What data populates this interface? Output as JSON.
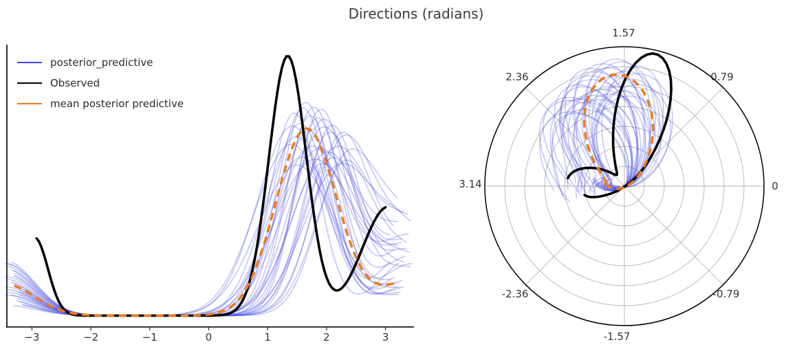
{
  "title": "Directions (radians)",
  "colors": {
    "posterior_predictive": "#3b43e0",
    "observed": "#000000",
    "mean_posterior_predictive": "#ee7b1d",
    "grid": "#9a9a9a",
    "spine": "#1a1a1a",
    "tick_text": "#333333",
    "title_text": "#3a3a3a"
  },
  "legend": {
    "items": [
      {
        "label": "posterior_predictive",
        "color_key": "posterior_predictive"
      },
      {
        "label": "Observed",
        "color_key": "observed"
      },
      {
        "label": "mean posterior predictive",
        "color_key": "mean_posterior_predictive"
      }
    ]
  },
  "chart_data": [
    {
      "type": "line",
      "subtitle": "kernel density estimates of directions (radians), linear axes",
      "xlabel": "",
      "ylabel": "",
      "x_ticks": [
        -3,
        -2,
        -1,
        0,
        1,
        2,
        3
      ],
      "xlim": [
        -3.45,
        3.49
      ],
      "grid": false,
      "legend_position": "upper left",
      "series": [
        {
          "name": "Observed",
          "style": "solid",
          "color_key": "observed",
          "x_range": [
            -2.92,
            3.0
          ],
          "base": 0.004,
          "components": [
            {
              "center": 1.34,
              "height": 1.0,
              "sigma": 0.32
            },
            {
              "center": 3.05,
              "height": 0.42,
              "sigma": 0.45
            },
            {
              "center": -2.95,
              "height": 0.3,
              "sigma": 0.22
            }
          ],
          "approx_points_x": [
            -2.92,
            -2.5,
            -2.0,
            -1.0,
            0.0,
            0.5,
            1.0,
            1.34,
            1.7,
            2.0,
            2.45,
            3.0
          ],
          "approx_points_density": [
            0.3,
            0.03,
            0.01,
            0.004,
            0.004,
            0.04,
            0.57,
            1.0,
            0.6,
            0.15,
            0.17,
            0.42
          ]
        },
        {
          "name": "mean posterior predictive",
          "style": "dashed",
          "color_key": "mean_posterior_predictive",
          "x_range": [
            -3.3,
            3.25
          ],
          "base": 0.004,
          "components": [
            {
              "center": 1.66,
              "height": 0.72,
              "sigma": 0.52
            },
            {
              "center": 3.45,
              "height": 0.13,
              "sigma": 0.55
            },
            {
              "center": -3.45,
              "height": 0.12,
              "sigma": 0.5
            }
          ],
          "approx_points_x": [
            -3.2,
            -2.5,
            -1.5,
            -0.5,
            0.0,
            0.5,
            1.0,
            1.66,
            2.3,
            3.0,
            3.2
          ],
          "approx_points_density": [
            0.11,
            0.02,
            0.005,
            0.01,
            0.02,
            0.06,
            0.32,
            0.72,
            0.34,
            0.12,
            0.13
          ]
        }
      ],
      "posterior_predictive_samples": {
        "name": "posterior_predictive",
        "style": "solid",
        "color_key": "posterior_predictive",
        "opacity": 0.3,
        "count": 30,
        "base": 0.004,
        "params": [
          {
            "c": 1.45,
            "h": 0.78,
            "s": 0.42,
            "tl": 0.16,
            "tr": 0.22,
            "x0": -3.3,
            "x1": 3.25
          },
          {
            "c": 1.95,
            "h": 0.72,
            "s": 0.55,
            "tl": 0.1,
            "tr": 0.28,
            "x0": -3.4,
            "x1": 3.1
          },
          {
            "c": 2.1,
            "h": 0.6,
            "s": 0.5,
            "tl": 0.06,
            "tr": 0.18,
            "x0": -3.2,
            "x1": 3.35
          },
          {
            "c": 1.6,
            "h": 0.8,
            "s": 0.45,
            "tl": 0.2,
            "tr": 0.12,
            "x0": -3.45,
            "x1": 3.2
          },
          {
            "c": 1.75,
            "h": 0.65,
            "s": 0.6,
            "tl": 0.12,
            "tr": 0.3,
            "x0": -3.25,
            "x1": 3.4
          },
          {
            "c": 2.25,
            "h": 0.68,
            "s": 0.48,
            "tl": 0.08,
            "tr": 0.26,
            "x0": -3.35,
            "x1": 3.15
          },
          {
            "c": 1.5,
            "h": 0.58,
            "s": 0.65,
            "tl": 0.18,
            "tr": 0.1,
            "x0": -3.3,
            "x1": 3.3
          },
          {
            "c": 1.85,
            "h": 0.76,
            "s": 0.4,
            "tl": 0.05,
            "tr": 0.2,
            "x0": -3.15,
            "x1": 3.45
          },
          {
            "c": 2.0,
            "h": 0.62,
            "s": 0.58,
            "tl": 0.14,
            "tr": 0.32,
            "x0": -3.4,
            "x1": 3.2
          },
          {
            "c": 1.7,
            "h": 0.71,
            "s": 0.52,
            "tl": 0.09,
            "tr": 0.15,
            "x0": -3.2,
            "x1": 3.1
          },
          {
            "c": 2.3,
            "h": 0.57,
            "s": 0.47,
            "tl": 0.11,
            "tr": 0.24,
            "x0": -3.45,
            "x1": 3.35
          },
          {
            "c": 1.4,
            "h": 0.66,
            "s": 0.62,
            "tl": 0.17,
            "tr": 0.08,
            "x0": -3.3,
            "x1": 3.25
          },
          {
            "c": 1.9,
            "h": 0.79,
            "s": 0.44,
            "tl": 0.07,
            "tr": 0.28,
            "x0": -3.25,
            "x1": 3.15
          },
          {
            "c": 2.15,
            "h": 0.63,
            "s": 0.55,
            "tl": 0.13,
            "tr": 0.34,
            "x0": -3.35,
            "x1": 3.4
          },
          {
            "c": 1.55,
            "h": 0.74,
            "s": 0.5,
            "tl": 0.19,
            "tr": 0.14,
            "x0": -3.4,
            "x1": 3.3
          },
          {
            "c": 1.8,
            "h": 0.6,
            "s": 0.68,
            "tl": 0.1,
            "tr": 0.22,
            "x0": -3.2,
            "x1": 3.2
          },
          {
            "c": 2.05,
            "h": 0.7,
            "s": 0.46,
            "tl": 0.04,
            "tr": 0.18,
            "x0": -3.3,
            "x1": 3.45
          },
          {
            "c": 1.65,
            "h": 0.82,
            "s": 0.43,
            "tl": 0.15,
            "tr": 0.26,
            "x0": -3.45,
            "x1": 3.1
          },
          {
            "c": 2.2,
            "h": 0.56,
            "s": 0.6,
            "tl": 0.12,
            "tr": 0.3,
            "x0": -3.15,
            "x1": 3.3
          },
          {
            "c": 1.48,
            "h": 0.69,
            "s": 0.53,
            "tl": 0.21,
            "tr": 0.11,
            "x0": -3.35,
            "x1": 3.25
          },
          {
            "c": 1.95,
            "h": 0.75,
            "s": 0.49,
            "tl": 0.06,
            "tr": 0.25,
            "x0": -3.25,
            "x1": 3.35
          },
          {
            "c": 2.35,
            "h": 0.59,
            "s": 0.52,
            "tl": 0.09,
            "tr": 0.33,
            "x0": -3.4,
            "x1": 3.2
          },
          {
            "c": 1.72,
            "h": 0.77,
            "s": 0.41,
            "tl": 0.16,
            "tr": 0.17,
            "x0": -3.3,
            "x1": 3.15
          },
          {
            "c": 1.88,
            "h": 0.64,
            "s": 0.63,
            "tl": 0.11,
            "tr": 0.21,
            "x0": -3.2,
            "x1": 3.4
          },
          {
            "c": 2.08,
            "h": 0.72,
            "s": 0.45,
            "tl": 0.08,
            "tr": 0.29,
            "x0": -3.45,
            "x1": 3.3
          },
          {
            "c": 1.58,
            "h": 0.61,
            "s": 0.57,
            "tl": 0.18,
            "tr": 0.13,
            "x0": -3.35,
            "x1": 3.2
          },
          {
            "c": 1.78,
            "h": 0.8,
            "s": 0.47,
            "tl": 0.05,
            "tr": 0.23,
            "x0": -3.15,
            "x1": 3.35
          },
          {
            "c": 2.28,
            "h": 0.66,
            "s": 0.51,
            "tl": 0.13,
            "tr": 0.31,
            "x0": -3.3,
            "x1": 3.45
          },
          {
            "c": 1.42,
            "h": 0.73,
            "s": 0.59,
            "tl": 0.2,
            "tr": 0.09,
            "x0": -3.4,
            "x1": 3.25
          },
          {
            "c": 1.92,
            "h": 0.58,
            "s": 0.54,
            "tl": 0.1,
            "tr": 0.27,
            "x0": -3.25,
            "x1": 3.3
          }
        ]
      }
    },
    {
      "type": "polar-line",
      "subtitle": "same densities drawn on a polar axis: angle = direction (radians), radius = density",
      "angular_tick_labels": [
        "0",
        "0.79",
        "1.57",
        "2.36",
        "3.14",
        "-2.36",
        "-1.57",
        "-0.79"
      ],
      "angular_tick_values": [
        0,
        0.79,
        1.57,
        2.36,
        3.14,
        -2.36,
        -1.57,
        -0.79
      ],
      "radial_rings": 7,
      "grid": true,
      "series_source": "same series as linear subplot"
    }
  ]
}
